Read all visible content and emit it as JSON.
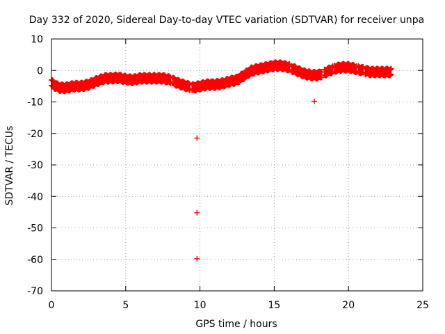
{
  "chart_data": {
    "type": "scatter",
    "title": "Day 332 of 2020, Sidereal Day-to-day VTEC variation (SDTVAR) for receiver unpa",
    "xlabel": "GPS time / hours",
    "ylabel": "SDTVAR / TECUs",
    "xlim": [
      0,
      25
    ],
    "ylim": [
      -70,
      10
    ],
    "x_ticks": [
      0,
      5,
      10,
      15,
      20,
      25
    ],
    "y_ticks": [
      10,
      0,
      -10,
      -20,
      -30,
      -40,
      -50,
      -60,
      -70
    ],
    "x_tick_labels": [
      "0",
      "5",
      "10",
      "15",
      "20",
      "25"
    ],
    "y_tick_labels": [
      "10",
      "0",
      "-10",
      "-20",
      "-30",
      "-40",
      "-50",
      "-60",
      "-70"
    ],
    "grid": true,
    "legend": "none",
    "marker": "+",
    "color": "#ff0000",
    "series": [
      {
        "name": "SDTVAR",
        "band_x": [
          0.0,
          0.3,
          0.6,
          1.0,
          1.5,
          2.0,
          2.5,
          3.0,
          3.3,
          3.6,
          4.0,
          4.5,
          5.0,
          5.5,
          6.0,
          6.5,
          7.0,
          7.5,
          8.0,
          8.5,
          9.0,
          9.5,
          10.0,
          10.5,
          11.0,
          11.5,
          12.0,
          12.5,
          13.0,
          13.5,
          14.0,
          14.5,
          15.0,
          15.5,
          16.0,
          16.5,
          17.0,
          17.5,
          18.0,
          18.5,
          19.0,
          19.5,
          20.0,
          20.5,
          21.0,
          21.5,
          22.0,
          22.5,
          22.9
        ],
        "band_y": [
          -4.0,
          -5.0,
          -5.5,
          -5.5,
          -5.0,
          -5.0,
          -4.5,
          -3.5,
          -3.0,
          -2.5,
          -2.5,
          -2.3,
          -2.8,
          -3.0,
          -2.5,
          -2.5,
          -2.5,
          -2.5,
          -3.0,
          -4.0,
          -4.8,
          -5.5,
          -5.0,
          -4.5,
          -4.5,
          -4.2,
          -3.5,
          -3.0,
          -1.5,
          0.0,
          0.5,
          1.0,
          1.5,
          1.5,
          1.0,
          0.0,
          -1.0,
          -1.5,
          -1.5,
          -0.5,
          0.5,
          1.0,
          1.0,
          0.5,
          0.0,
          -0.5,
          -0.5,
          -0.5,
          -0.5
        ],
        "band_spread": 1.6,
        "outliers": [
          {
            "x": 9.8,
            "y": -21.5
          },
          {
            "x": 9.8,
            "y": -45.2
          },
          {
            "x": 9.8,
            "y": -59.8
          },
          {
            "x": 17.7,
            "y": -9.8
          }
        ]
      }
    ]
  }
}
